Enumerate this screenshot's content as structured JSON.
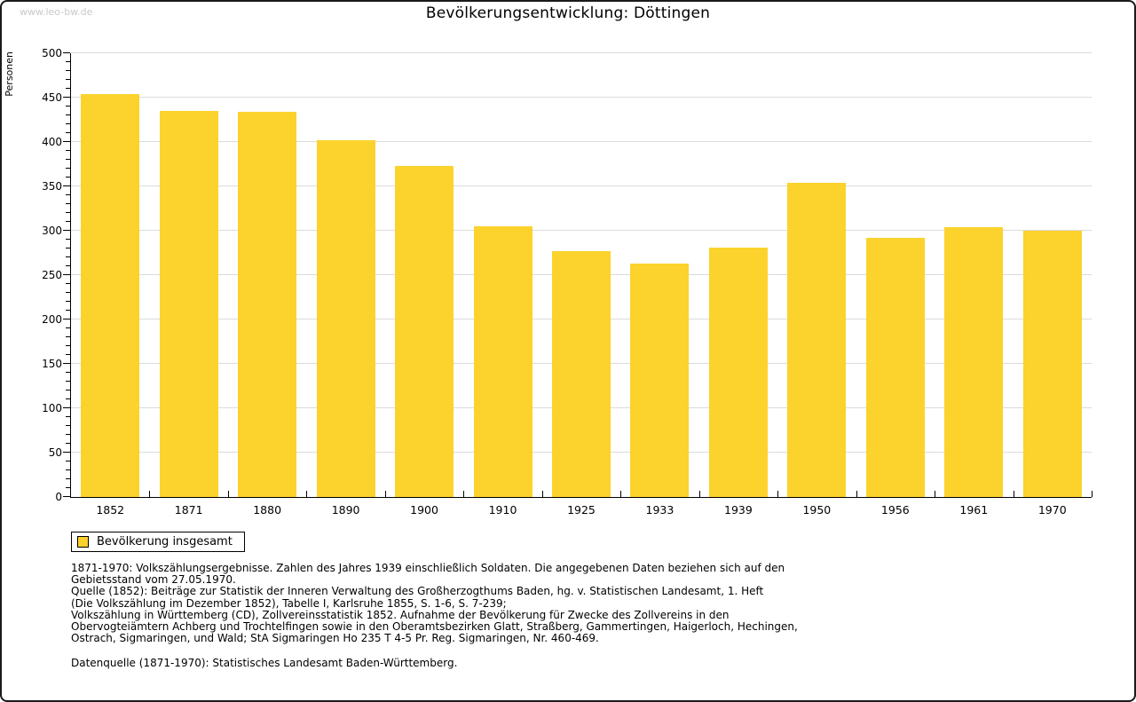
{
  "page": {
    "watermark": "www.leo-bw.de",
    "title": "Bevölkerungsentwicklung: Döttingen"
  },
  "chart_data": {
    "type": "bar",
    "title": "Bevölkerungsentwicklung: Döttingen",
    "ylabel": "Personen",
    "xlabel": "",
    "categories": [
      "1852",
      "1871",
      "1880",
      "1890",
      "1900",
      "1910",
      "1925",
      "1933",
      "1939",
      "1950",
      "1956",
      "1961",
      "1970"
    ],
    "values": [
      454,
      435,
      434,
      402,
      373,
      305,
      277,
      263,
      281,
      354,
      292,
      304,
      300
    ],
    "ylim": [
      0,
      500
    ],
    "ytick_step": 50,
    "y_minor_step": 10,
    "grid": "horizontal-major",
    "legend_position": "bottom-left",
    "bar_color": "#FCD22D",
    "grid_color": "#dbdbdb",
    "axis_color": "#000000"
  },
  "legend": {
    "swatch_color": "#FCD22D",
    "label": "Bevölkerung insgesamt"
  },
  "footnotes": {
    "source_block": "1871-1970: Volkszählungsergebnisse. Zahlen des Jahres 1939 einschließlich Soldaten. Die angegebenen Daten beziehen sich auf den\nGebietsstand vom 27.05.1970.\nQuelle (1852): Beiträge zur Statistik der Inneren Verwaltung des Großherzogthums Baden, hg. v. Statistischen Landesamt, 1. Heft\n(Die Volkszählung im Dezember 1852), Tabelle I, Karlsruhe 1855, S. 1-6, S. 7-239;\nVolkszählung in Württemberg (CD), Zollvereinsstatistik 1852. Aufnahme der Bevölkerung für Zwecke des Zollvereins in den\nObervogteiämtern Achberg und Trochtelfingen sowie in den Oberamtsbezirken Glatt, Straßberg, Gammertingen, Haigerloch, Hechingen,\nOstrach, Sigmaringen, und Wald; StA Sigmaringen Ho 235 T 4-5 Pr. Reg. Sigmaringen, Nr. 460-469.",
    "datasource": "Datenquelle (1871-1970): Statistisches Landesamt Baden-Württemberg."
  }
}
